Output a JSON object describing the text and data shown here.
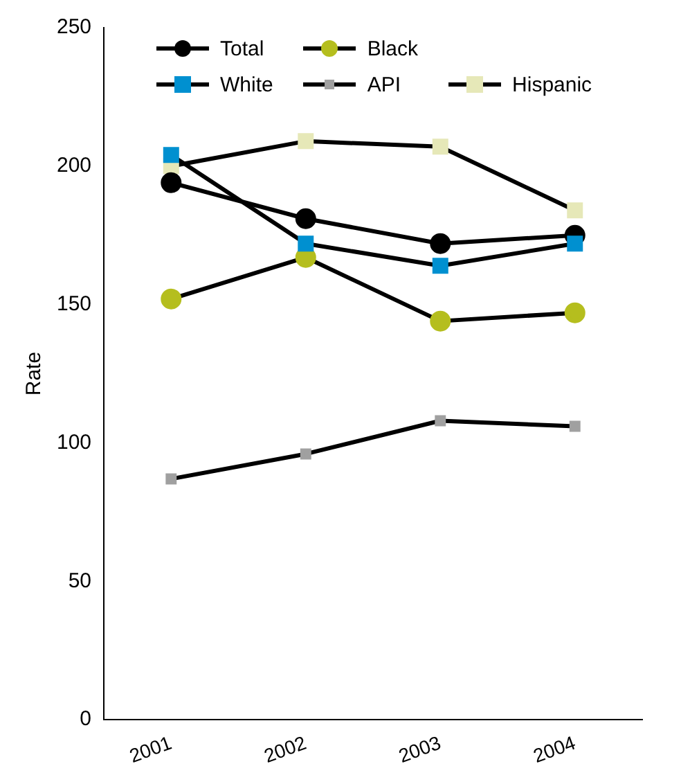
{
  "chart_data": {
    "type": "line",
    "ylabel": "Rate",
    "categories": [
      "2001",
      "2002",
      "2003",
      "2004"
    ],
    "series": [
      {
        "name": "Total",
        "color": "#000000",
        "marker": "circle",
        "values": [
          194,
          181,
          172,
          175
        ]
      },
      {
        "name": "White",
        "color": "#0090d0",
        "marker": "square",
        "values": [
          204,
          172,
          164,
          172
        ]
      },
      {
        "name": "Black",
        "color": "#b5be1e",
        "marker": "circle",
        "values": [
          152,
          167,
          144,
          147
        ]
      },
      {
        "name": "API",
        "color": "#a0a0a0",
        "marker": "square",
        "values": [
          87,
          96,
          108,
          106
        ]
      },
      {
        "name": "Hispanic",
        "color": "#e6e8b8",
        "marker": "square",
        "values": [
          200,
          209,
          207,
          184
        ]
      }
    ],
    "ylim": [
      0,
      250
    ],
    "yticks": [
      0,
      50,
      100,
      150,
      200,
      250
    ],
    "grid": false,
    "legend": "top left",
    "line_style": "solid"
  }
}
